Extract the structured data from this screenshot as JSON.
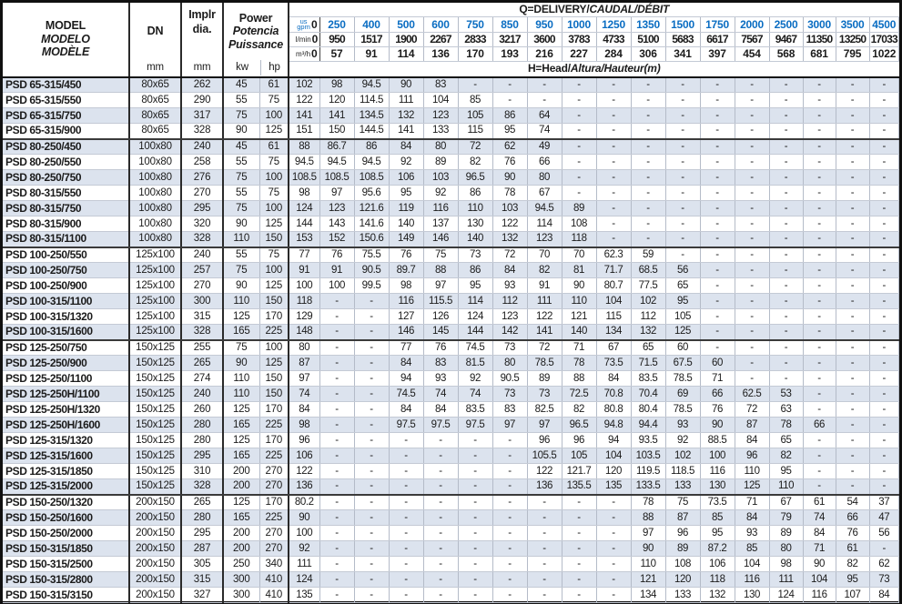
{
  "left_header": {
    "model_lines": [
      "MODEL",
      "MODELO",
      "MODÈLE"
    ],
    "dn_label": "DN",
    "dn_unit": "mm",
    "dia_line1": "Implr",
    "dia_line2": "dia.",
    "dia_unit": "mm",
    "power_lines": [
      "Power",
      "Potencia",
      "Puissance"
    ],
    "kw_label": "kw",
    "hp_label": "hp"
  },
  "q_header": {
    "title_plain": "Q=DELIVERY/",
    "title_italic1": "CAUDAL/",
    "title_italic2": "DÉBIT",
    "h_plain": "H=Head/",
    "h_italic1": "Altura/",
    "h_italic2": "Hauteur(m)",
    "unit_gpm": "us gpm",
    "unit_lmin": "l/min",
    "unit_m3h": "m³/h",
    "gpm": [
      "0",
      "250",
      "400",
      "500",
      "600",
      "750",
      "850",
      "950",
      "1000",
      "1250",
      "1350",
      "1500",
      "1750",
      "2000",
      "2500",
      "3000",
      "3500",
      "4500"
    ],
    "lmin": [
      "0",
      "950",
      "1517",
      "1900",
      "2267",
      "2833",
      "3217",
      "3600",
      "3783",
      "4733",
      "5100",
      "5683",
      "6617",
      "7567",
      "9467",
      "11350",
      "13250",
      "17033"
    ],
    "m3h": [
      "0",
      "57",
      "91",
      "114",
      "136",
      "170",
      "193",
      "216",
      "227",
      "284",
      "306",
      "341",
      "397",
      "454",
      "568",
      "681",
      "795",
      "1022"
    ]
  },
  "colors": {
    "accent_blue": "#0a6dc2",
    "row_shade": "#dce3ee",
    "border_heavy": "#101010",
    "border_light": "#b4bbc8"
  },
  "rows": [
    {
      "model": "PSD 65-315/450",
      "dn": "80x65",
      "dia": "262",
      "kw": "45",
      "hp": "61",
      "h": [
        "102",
        "98",
        "94.5",
        "90",
        "83",
        "-",
        "-",
        "-",
        "-",
        "-",
        "-",
        "-",
        "-",
        "-",
        "-",
        "-",
        "-",
        "-"
      ]
    },
    {
      "model": "PSD 65-315/550",
      "dn": "80x65",
      "dia": "290",
      "kw": "55",
      "hp": "75",
      "h": [
        "122",
        "120",
        "114.5",
        "111",
        "104",
        "85",
        "-",
        "-",
        "-",
        "-",
        "-",
        "-",
        "-",
        "-",
        "-",
        "-",
        "-",
        "-"
      ]
    },
    {
      "model": "PSD 65-315/750",
      "dn": "80x65",
      "dia": "317",
      "kw": "75",
      "hp": "100",
      "h": [
        "141",
        "141",
        "134.5",
        "132",
        "123",
        "105",
        "86",
        "64",
        "-",
        "-",
        "-",
        "-",
        "-",
        "-",
        "-",
        "-",
        "-",
        "-"
      ]
    },
    {
      "model": "PSD 65-315/900",
      "dn": "80x65",
      "dia": "328",
      "kw": "90",
      "hp": "125",
      "h": [
        "151",
        "150",
        "144.5",
        "141",
        "133",
        "115",
        "95",
        "74",
        "-",
        "-",
        "-",
        "-",
        "-",
        "-",
        "-",
        "-",
        "-",
        "-"
      ]
    },
    {
      "model": "PSD 80-250/450",
      "dn": "100x80",
      "dia": "240",
      "kw": "45",
      "hp": "61",
      "h": [
        "88",
        "86.7",
        "86",
        "84",
        "80",
        "72",
        "62",
        "49",
        "-",
        "-",
        "-",
        "-",
        "-",
        "-",
        "-",
        "-",
        "-",
        "-"
      ]
    },
    {
      "model": "PSD 80-250/550",
      "dn": "100x80",
      "dia": "258",
      "kw": "55",
      "hp": "75",
      "h": [
        "94.5",
        "94.5",
        "94.5",
        "92",
        "89",
        "82",
        "76",
        "66",
        "-",
        "-",
        "-",
        "-",
        "-",
        "-",
        "-",
        "-",
        "-",
        "-"
      ]
    },
    {
      "model": "PSD 80-250/750",
      "dn": "100x80",
      "dia": "276",
      "kw": "75",
      "hp": "100",
      "h": [
        "108.5",
        "108.5",
        "108.5",
        "106",
        "103",
        "96.5",
        "90",
        "80",
        "-",
        "-",
        "-",
        "-",
        "-",
        "-",
        "-",
        "-",
        "-",
        "-"
      ]
    },
    {
      "model": "PSD 80-315/550",
      "dn": "100x80",
      "dia": "270",
      "kw": "55",
      "hp": "75",
      "h": [
        "98",
        "97",
        "95.6",
        "95",
        "92",
        "86",
        "78",
        "67",
        "-",
        "-",
        "-",
        "-",
        "-",
        "-",
        "-",
        "-",
        "-",
        "-"
      ]
    },
    {
      "model": "PSD 80-315/750",
      "dn": "100x80",
      "dia": "295",
      "kw": "75",
      "hp": "100",
      "h": [
        "124",
        "123",
        "121.6",
        "119",
        "116",
        "110",
        "103",
        "94.5",
        "89",
        "-",
        "-",
        "-",
        "-",
        "-",
        "-",
        "-",
        "-",
        "-"
      ]
    },
    {
      "model": "PSD 80-315/900",
      "dn": "100x80",
      "dia": "320",
      "kw": "90",
      "hp": "125",
      "h": [
        "144",
        "143",
        "141.6",
        "140",
        "137",
        "130",
        "122",
        "114",
        "108",
        "-",
        "-",
        "-",
        "-",
        "-",
        "-",
        "-",
        "-",
        "-"
      ]
    },
    {
      "model": "PSD 80-315/1100",
      "dn": "100x80",
      "dia": "328",
      "kw": "110",
      "hp": "150",
      "h": [
        "153",
        "152",
        "150.6",
        "149",
        "146",
        "140",
        "132",
        "123",
        "118",
        "-",
        "-",
        "-",
        "-",
        "-",
        "-",
        "-",
        "-",
        "-"
      ]
    },
    {
      "model": "PSD 100-250/550",
      "dn": "125x100",
      "dia": "240",
      "kw": "55",
      "hp": "75",
      "h": [
        "77",
        "76",
        "75.5",
        "76",
        "75",
        "73",
        "72",
        "70",
        "70",
        "62.3",
        "59",
        "-",
        "-",
        "-",
        "-",
        "-",
        "-",
        "-"
      ]
    },
    {
      "model": "PSD 100-250/750",
      "dn": "125x100",
      "dia": "257",
      "kw": "75",
      "hp": "100",
      "h": [
        "91",
        "91",
        "90.5",
        "89.7",
        "88",
        "86",
        "84",
        "82",
        "81",
        "71.7",
        "68.5",
        "56",
        "-",
        "-",
        "-",
        "-",
        "-",
        "-"
      ]
    },
    {
      "model": "PSD 100-250/900",
      "dn": "125x100",
      "dia": "270",
      "kw": "90",
      "hp": "125",
      "h": [
        "100",
        "100",
        "99.5",
        "98",
        "97",
        "95",
        "93",
        "91",
        "90",
        "80.7",
        "77.5",
        "65",
        "-",
        "-",
        "-",
        "-",
        "-",
        "-"
      ]
    },
    {
      "model": "PSD 100-315/1100",
      "dn": "125x100",
      "dia": "300",
      "kw": "110",
      "hp": "150",
      "h": [
        "118",
        "-",
        "-",
        "116",
        "115.5",
        "114",
        "112",
        "111",
        "110",
        "104",
        "102",
        "95",
        "-",
        "-",
        "-",
        "-",
        "-",
        "-"
      ]
    },
    {
      "model": "PSD 100-315/1320",
      "dn": "125x100",
      "dia": "315",
      "kw": "125",
      "hp": "170",
      "h": [
        "129",
        "-",
        "-",
        "127",
        "126",
        "124",
        "123",
        "122",
        "121",
        "115",
        "112",
        "105",
        "-",
        "-",
        "-",
        "-",
        "-",
        "-"
      ]
    },
    {
      "model": "PSD 100-315/1600",
      "dn": "125x100",
      "dia": "328",
      "kw": "165",
      "hp": "225",
      "h": [
        "148",
        "-",
        "-",
        "146",
        "145",
        "144",
        "142",
        "141",
        "140",
        "134",
        "132",
        "125",
        "-",
        "-",
        "-",
        "-",
        "-",
        "-"
      ]
    },
    {
      "model": "PSD 125-250/750",
      "dn": "150x125",
      "dia": "255",
      "kw": "75",
      "hp": "100",
      "h": [
        "80",
        "-",
        "-",
        "77",
        "76",
        "74.5",
        "73",
        "72",
        "71",
        "67",
        "65",
        "60",
        "-",
        "-",
        "-",
        "-",
        "-",
        "-"
      ]
    },
    {
      "model": "PSD 125-250/900",
      "dn": "150x125",
      "dia": "265",
      "kw": "90",
      "hp": "125",
      "h": [
        "87",
        "-",
        "-",
        "84",
        "83",
        "81.5",
        "80",
        "78.5",
        "78",
        "73.5",
        "71.5",
        "67.5",
        "60",
        "-",
        "-",
        "-",
        "-",
        "-"
      ]
    },
    {
      "model": "PSD 125-250/1100",
      "dn": "150x125",
      "dia": "274",
      "kw": "110",
      "hp": "150",
      "h": [
        "97",
        "-",
        "-",
        "94",
        "93",
        "92",
        "90.5",
        "89",
        "88",
        "84",
        "83.5",
        "78.5",
        "71",
        "-",
        "-",
        "-",
        "-",
        "-"
      ]
    },
    {
      "model": "PSD 125-250H/1100",
      "dn": "150x125",
      "dia": "240",
      "kw": "110",
      "hp": "150",
      "h": [
        "74",
        "-",
        "-",
        "74.5",
        "74",
        "74",
        "73",
        "73",
        "72.5",
        "70.8",
        "70.4",
        "69",
        "66",
        "62.5",
        "53",
        "-",
        "-",
        "-"
      ]
    },
    {
      "model": "PSD 125-250H/1320",
      "dn": "150x125",
      "dia": "260",
      "kw": "125",
      "hp": "170",
      "h": [
        "84",
        "-",
        "-",
        "84",
        "84",
        "83.5",
        "83",
        "82.5",
        "82",
        "80.8",
        "80.4",
        "78.5",
        "76",
        "72",
        "63",
        "-",
        "-",
        "-"
      ]
    },
    {
      "model": "PSD 125-250H/1600",
      "dn": "150x125",
      "dia": "280",
      "kw": "165",
      "hp": "225",
      "h": [
        "98",
        "-",
        "-",
        "97.5",
        "97.5",
        "97.5",
        "97",
        "97",
        "96.5",
        "94.8",
        "94.4",
        "93",
        "90",
        "87",
        "78",
        "66",
        "-",
        "-"
      ]
    },
    {
      "model": "PSD 125-315/1320",
      "dn": "150x125",
      "dia": "280",
      "kw": "125",
      "hp": "170",
      "h": [
        "96",
        "-",
        "-",
        "-",
        "-",
        "-",
        "-",
        "96",
        "96",
        "94",
        "93.5",
        "92",
        "88.5",
        "84",
        "65",
        "-",
        "-",
        "-"
      ]
    },
    {
      "model": "PSD 125-315/1600",
      "dn": "150x125",
      "dia": "295",
      "kw": "165",
      "hp": "225",
      "h": [
        "106",
        "-",
        "-",
        "-",
        "-",
        "-",
        "-",
        "105.5",
        "105",
        "104",
        "103.5",
        "102",
        "100",
        "96",
        "82",
        "-",
        "-",
        "-"
      ]
    },
    {
      "model": "PSD 125-315/1850",
      "dn": "150x125",
      "dia": "310",
      "kw": "200",
      "hp": "270",
      "h": [
        "122",
        "-",
        "-",
        "-",
        "-",
        "-",
        "-",
        "122",
        "121.7",
        "120",
        "119.5",
        "118.5",
        "116",
        "110",
        "95",
        "-",
        "-",
        "-"
      ]
    },
    {
      "model": "PSD 125-315/2000",
      "dn": "150x125",
      "dia": "328",
      "kw": "200",
      "hp": "270",
      "h": [
        "136",
        "-",
        "-",
        "-",
        "-",
        "-",
        "-",
        "136",
        "135.5",
        "135",
        "133.5",
        "133",
        "130",
        "125",
        "110",
        "-",
        "-",
        "-"
      ]
    },
    {
      "model": "PSD 150-250/1320",
      "dn": "200x150",
      "dia": "265",
      "kw": "125",
      "hp": "170",
      "h": [
        "80.2",
        "-",
        "-",
        "-",
        "-",
        "-",
        "-",
        "-",
        "-",
        "-",
        "78",
        "75",
        "73.5",
        "71",
        "67",
        "61",
        "54",
        "37"
      ]
    },
    {
      "model": "PSD 150-250/1600",
      "dn": "200x150",
      "dia": "280",
      "kw": "165",
      "hp": "225",
      "h": [
        "90",
        "-",
        "-",
        "-",
        "-",
        "-",
        "-",
        "-",
        "-",
        "-",
        "88",
        "87",
        "85",
        "84",
        "79",
        "74",
        "66",
        "47"
      ]
    },
    {
      "model": "PSD 150-250/2000",
      "dn": "200x150",
      "dia": "295",
      "kw": "200",
      "hp": "270",
      "h": [
        "100",
        "-",
        "-",
        "-",
        "-",
        "-",
        "-",
        "-",
        "-",
        "-",
        "97",
        "96",
        "95",
        "93",
        "89",
        "84",
        "76",
        "56"
      ]
    },
    {
      "model": "PSD 150-315/1850",
      "dn": "200x150",
      "dia": "287",
      "kw": "200",
      "hp": "270",
      "h": [
        "92",
        "-",
        "-",
        "-",
        "-",
        "-",
        "-",
        "-",
        "-",
        "-",
        "90",
        "89",
        "87.2",
        "85",
        "80",
        "71",
        "61",
        "-"
      ]
    },
    {
      "model": "PSD 150-315/2500",
      "dn": "200x150",
      "dia": "305",
      "kw": "250",
      "hp": "340",
      "h": [
        "111",
        "-",
        "-",
        "-",
        "-",
        "-",
        "-",
        "-",
        "-",
        "-",
        "110",
        "108",
        "106",
        "104",
        "98",
        "90",
        "82",
        "62"
      ]
    },
    {
      "model": "PSD 150-315/2800",
      "dn": "200x150",
      "dia": "315",
      "kw": "300",
      "hp": "410",
      "h": [
        "124",
        "-",
        "-",
        "-",
        "-",
        "-",
        "-",
        "-",
        "-",
        "-",
        "121",
        "120",
        "118",
        "116",
        "111",
        "104",
        "95",
        "73"
      ]
    },
    {
      "model": "PSD 150-315/3150",
      "dn": "200x150",
      "dia": "327",
      "kw": "300",
      "hp": "410",
      "h": [
        "135",
        "-",
        "-",
        "-",
        "-",
        "-",
        "-",
        "-",
        "-",
        "-",
        "134",
        "133",
        "132",
        "130",
        "124",
        "116",
        "107",
        "84"
      ]
    }
  ]
}
